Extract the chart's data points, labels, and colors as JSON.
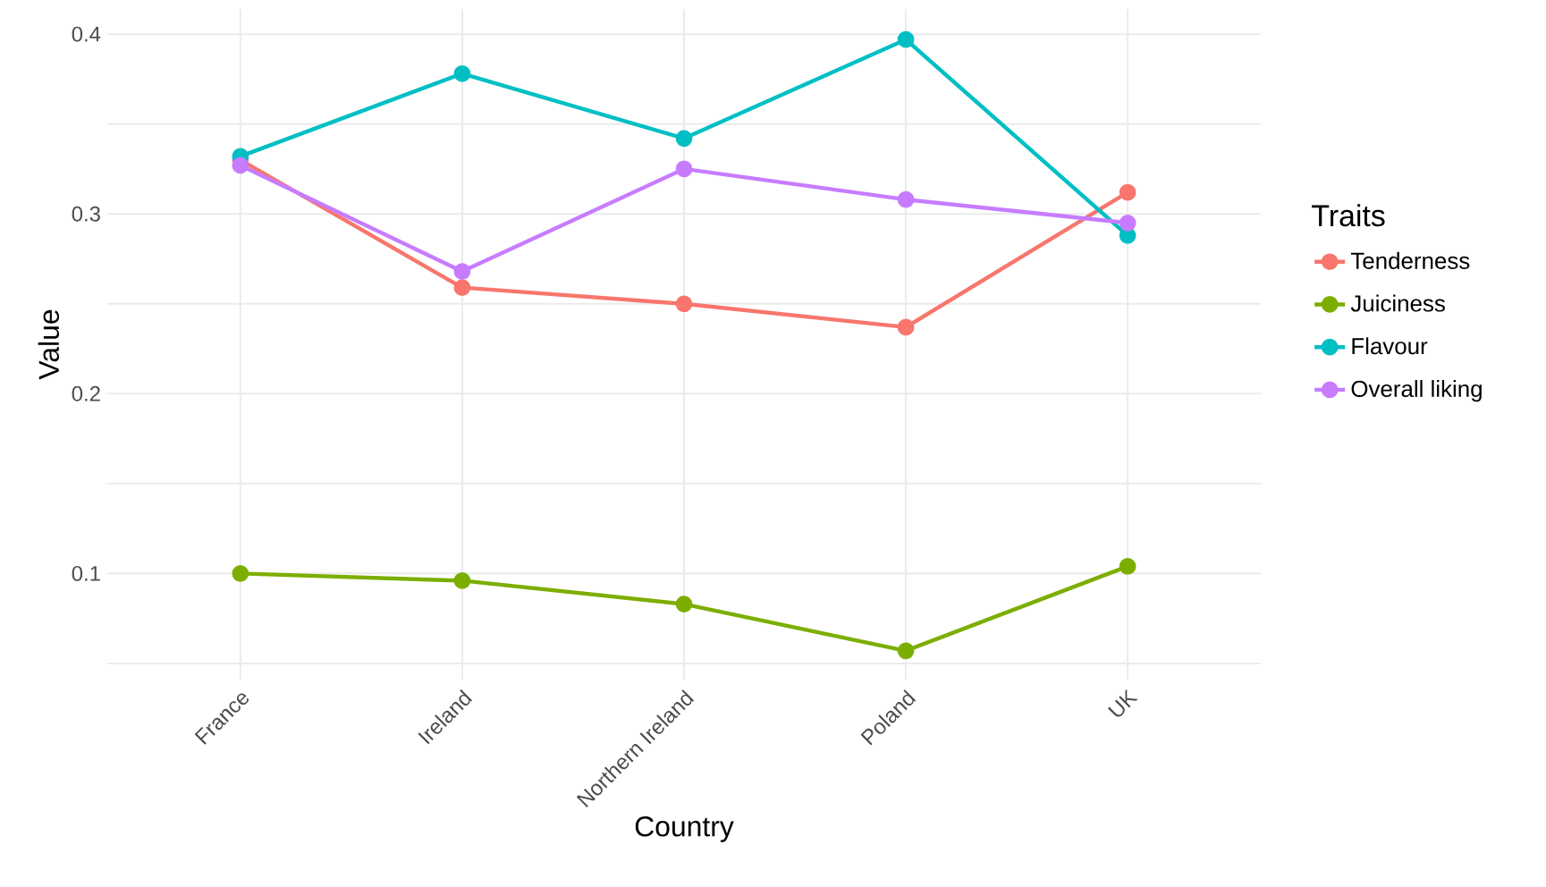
{
  "chart_data": {
    "type": "line",
    "xlabel": "Country",
    "ylabel": "Value",
    "legend_title": "Traits",
    "categories": [
      "France",
      "Ireland",
      "Northern Ireland",
      "Poland",
      "UK"
    ],
    "series": [
      {
        "name": "Tenderness",
        "color": "#f8766d",
        "values": [
          0.33,
          0.259,
          0.25,
          0.237,
          0.312
        ]
      },
      {
        "name": "Juiciness",
        "color": "#7cae00",
        "values": [
          0.1,
          0.096,
          0.083,
          0.057,
          0.104
        ]
      },
      {
        "name": "Flavour",
        "color": "#00bfc4",
        "values": [
          0.332,
          0.378,
          0.342,
          0.397,
          0.288
        ]
      },
      {
        "name": "Overall liking",
        "color": "#c77cff",
        "values": [
          0.327,
          0.268,
          0.325,
          0.308,
          0.295
        ]
      }
    ],
    "ylim": [
      0.041,
      0.414
    ],
    "yticks": [
      {
        "value": 0.05,
        "label": null
      },
      0.1,
      {
        "value": 0.15,
        "label": null
      },
      0.2,
      {
        "value": 0.25,
        "label": null
      },
      0.3,
      {
        "value": 0.35,
        "label": null
      },
      0.4
    ],
    "grid": true,
    "legend": "right",
    "marker": "circle",
    "line_style": "solid"
  }
}
